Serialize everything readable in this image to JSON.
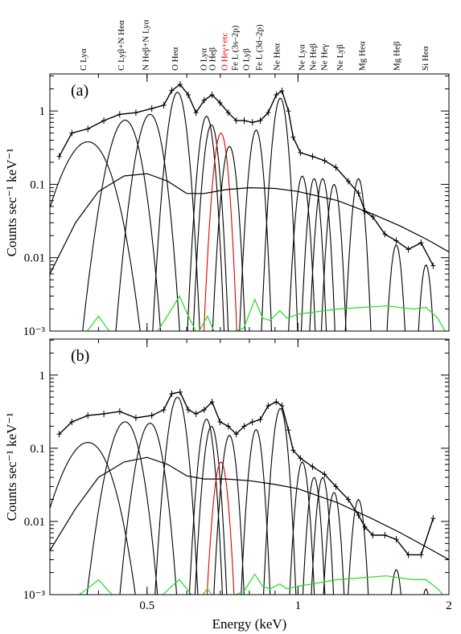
{
  "chart_data": [
    {
      "type": "spectrum",
      "panel_label": "(a)",
      "ylabel": "Counts sec⁻¹ keV⁻¹",
      "xlog": true,
      "ylog": true,
      "xlim": [
        0.32,
        2
      ],
      "ylim": [
        0.001,
        3.2
      ],
      "xticks": [
        0.5,
        1,
        2
      ],
      "yticks": [
        {
          "value": 0.001,
          "label": "10⁻³"
        },
        0.01,
        0.1,
        1
      ],
      "annotations": [
        {
          "text": "C Lyα",
          "x": 0.372,
          "color": "#000000"
        },
        {
          "text": "C Lyβ+N Heα",
          "x": 0.443,
          "color": "#000000"
        },
        {
          "text": "N Heβ+N Lyα",
          "x": 0.496,
          "color": "#000000"
        },
        {
          "text": "O Heα",
          "x": 0.567,
          "color": "#000000"
        },
        {
          "text": "O Lyα",
          "x": 0.647,
          "color": "#000000"
        },
        {
          "text": "O Heβ",
          "x": 0.674,
          "color": "#000000"
        },
        {
          "text": "O Heγ+etc",
          "x": 0.712,
          "color": "#e00000"
        },
        {
          "text": "Fe L (3s–2p)",
          "x": 0.747,
          "color": "#000000"
        },
        {
          "text": "O Lyβ",
          "x": 0.787,
          "color": "#000000"
        },
        {
          "text": "Fe L (3d–2p)",
          "x": 0.835,
          "color": "#000000"
        },
        {
          "text": "Ne Heα",
          "x": 0.905,
          "color": "#000000"
        },
        {
          "text": "Ne Lyα",
          "x": 1.015,
          "color": "#000000"
        },
        {
          "text": "Ne Heβ",
          "x": 1.069,
          "color": "#000000"
        },
        {
          "text": "Ne Heγ",
          "x": 1.125,
          "color": "#000000"
        },
        {
          "text": "Ne Lyβ",
          "x": 1.21,
          "color": "#000000"
        },
        {
          "text": "Mg Heα",
          "x": 1.34,
          "color": "#000000"
        },
        {
          "text": "Mg Heβ",
          "x": 1.57,
          "color": "#000000"
        },
        {
          "text": "Si Heα",
          "x": 1.79,
          "color": "#000000"
        }
      ],
      "data": {
        "color": "#000000",
        "x": [
          0.334,
          0.354,
          0.381,
          0.41,
          0.441,
          0.475,
          0.511,
          0.54,
          0.56,
          0.582,
          0.604,
          0.626,
          0.65,
          0.674,
          0.699,
          0.726,
          0.753,
          0.781,
          0.811,
          0.841,
          0.872,
          0.905,
          0.929,
          0.957,
          0.978,
          1.011,
          1.069,
          1.13,
          1.19,
          1.26,
          1.32,
          1.36,
          1.41,
          1.49,
          1.57,
          1.66,
          1.76,
          1.86
        ],
        "values": [
          0.24,
          0.5,
          0.57,
          0.74,
          0.9,
          0.95,
          1.08,
          1.2,
          1.9,
          2.3,
          1.66,
          0.95,
          1.4,
          1.66,
          1.29,
          0.95,
          0.74,
          0.74,
          0.7,
          0.74,
          0.95,
          1.66,
          1.88,
          1.0,
          0.44,
          0.27,
          0.24,
          0.21,
          0.17,
          0.11,
          0.076,
          0.043,
          0.036,
          0.021,
          0.017,
          0.013,
          0.016,
          0.0078
        ]
      },
      "components": [
        {
          "center": 0.381,
          "peak": 0.38,
          "sigma": 0.03,
          "color": "#000000"
        },
        {
          "center": 0.452,
          "peak": 0.75,
          "sigma": 0.022,
          "color": "#000000"
        },
        {
          "center": 0.507,
          "peak": 0.9,
          "sigma": 0.02,
          "color": "#000000"
        },
        {
          "center": 0.575,
          "peak": 1.8,
          "sigma": 0.016,
          "color": "#000000"
        },
        {
          "center": 0.657,
          "peak": 0.85,
          "sigma": 0.015,
          "color": "#000000"
        },
        {
          "center": 0.672,
          "peak": 0.65,
          "sigma": 0.015,
          "color": "#000000"
        },
        {
          "center": 0.702,
          "peak": 0.5,
          "sigma": 0.015,
          "color": "#e00000"
        },
        {
          "center": 0.73,
          "peak": 0.33,
          "sigma": 0.016,
          "color": "#000000"
        },
        {
          "center": 0.825,
          "peak": 0.55,
          "sigma": 0.017,
          "color": "#000000"
        },
        {
          "center": 0.922,
          "peak": 1.5,
          "sigma": 0.02,
          "color": "#000000"
        },
        {
          "center": 1.02,
          "peak": 0.13,
          "sigma": 0.02,
          "color": "#000000"
        },
        {
          "center": 1.077,
          "peak": 0.12,
          "sigma": 0.02,
          "color": "#000000"
        },
        {
          "center": 1.12,
          "peak": 0.12,
          "sigma": 0.021,
          "color": "#000000"
        },
        {
          "center": 1.18,
          "peak": 0.1,
          "sigma": 0.022,
          "color": "#000000"
        },
        {
          "center": 1.32,
          "peak": 0.12,
          "sigma": 0.025,
          "color": "#000000"
        },
        {
          "center": 1.57,
          "peak": 0.015,
          "sigma": 0.028,
          "color": "#000000"
        },
        {
          "center": 1.8,
          "peak": 0.008,
          "sigma": 0.03,
          "color": "#000000"
        }
      ],
      "curves": [
        {
          "color": "#000000",
          "x": [
            0.32,
            0.36,
            0.4,
            0.45,
            0.5,
            0.55,
            0.6,
            0.65,
            0.72,
            0.8,
            0.9,
            1.0,
            1.2,
            1.4,
            1.6,
            1.8,
            2.0
          ],
          "values": [
            0.006,
            0.03,
            0.08,
            0.13,
            0.14,
            0.11,
            0.075,
            0.075,
            0.085,
            0.09,
            0.088,
            0.08,
            0.06,
            0.04,
            0.027,
            0.018,
            0.012
          ]
        },
        {
          "color": "#22dd22",
          "x": [
            0.35,
            0.38,
            0.4,
            0.42,
            0.45,
            0.52,
            0.56,
            0.58,
            0.6,
            0.63,
            0.66,
            0.68,
            0.72,
            0.78,
            0.82,
            0.85,
            0.88,
            0.92,
            0.95,
            1.0,
            1.2,
            1.5,
            1.7,
            1.8,
            1.9,
            2.0
          ],
          "values": [
            0.0006,
            0.001,
            0.0016,
            0.001,
            0.0008,
            0.0009,
            0.002,
            0.003,
            0.0018,
            0.0009,
            0.0016,
            0.001,
            0.0009,
            0.0011,
            0.0027,
            0.0015,
            0.0014,
            0.0019,
            0.0015,
            0.0017,
            0.002,
            0.0022,
            0.002,
            0.0021,
            0.0015,
            0.0008
          ]
        }
      ]
    },
    {
      "type": "spectrum",
      "panel_label": "(b)",
      "ylabel": "Counts sec⁻¹ keV⁻¹",
      "xlabel": "Energy (keV)",
      "xlog": true,
      "ylog": true,
      "xlim": [
        0.32,
        2
      ],
      "ylim": [
        0.001,
        3.1
      ],
      "xticks": [
        0.5,
        1,
        2
      ],
      "yticks": [
        {
          "value": 0.001,
          "label": "10⁻³"
        },
        0.01,
        0.1,
        1
      ],
      "data": {
        "color": "#000000",
        "x": [
          0.334,
          0.354,
          0.381,
          0.41,
          0.441,
          0.475,
          0.511,
          0.54,
          0.56,
          0.582,
          0.604,
          0.626,
          0.65,
          0.674,
          0.699,
          0.726,
          0.753,
          0.781,
          0.811,
          0.841,
          0.872,
          0.905,
          0.929,
          0.957,
          0.978,
          1.011,
          1.069,
          1.13,
          1.19,
          1.26,
          1.32,
          1.36,
          1.41,
          1.49,
          1.57,
          1.66,
          1.76,
          1.86
        ],
        "values": [
          0.156,
          0.229,
          0.28,
          0.295,
          0.318,
          0.26,
          0.28,
          0.335,
          0.557,
          0.586,
          0.335,
          0.295,
          0.335,
          0.43,
          0.229,
          0.2,
          0.156,
          0.2,
          0.229,
          0.247,
          0.38,
          0.43,
          0.38,
          0.177,
          0.094,
          0.073,
          0.056,
          0.044,
          0.03,
          0.02,
          0.0122,
          0.0084,
          0.0065,
          0.0065,
          0.0057,
          0.0035,
          0.0035,
          0.011
        ]
      },
      "components": [
        {
          "center": 0.381,
          "peak": 0.12,
          "sigma": 0.03,
          "color": "#000000"
        },
        {
          "center": 0.452,
          "peak": 0.23,
          "sigma": 0.022,
          "color": "#000000"
        },
        {
          "center": 0.507,
          "peak": 0.22,
          "sigma": 0.02,
          "color": "#000000"
        },
        {
          "center": 0.575,
          "peak": 0.5,
          "sigma": 0.016,
          "color": "#000000"
        },
        {
          "center": 0.657,
          "peak": 0.25,
          "sigma": 0.015,
          "color": "#000000"
        },
        {
          "center": 0.672,
          "peak": 0.2,
          "sigma": 0.015,
          "color": "#000000"
        },
        {
          "center": 0.702,
          "peak": 0.065,
          "sigma": 0.015,
          "color": "#e00000"
        },
        {
          "center": 0.73,
          "peak": 0.15,
          "sigma": 0.016,
          "color": "#000000"
        },
        {
          "center": 0.825,
          "peak": 0.18,
          "sigma": 0.017,
          "color": "#000000"
        },
        {
          "center": 0.922,
          "peak": 0.35,
          "sigma": 0.02,
          "color": "#000000"
        },
        {
          "center": 1.02,
          "peak": 0.065,
          "sigma": 0.02,
          "color": "#000000"
        },
        {
          "center": 1.077,
          "peak": 0.04,
          "sigma": 0.02,
          "color": "#000000"
        },
        {
          "center": 1.12,
          "peak": 0.04,
          "sigma": 0.021,
          "color": "#000000"
        },
        {
          "center": 1.18,
          "peak": 0.025,
          "sigma": 0.022,
          "color": "#000000"
        },
        {
          "center": 1.32,
          "peak": 0.02,
          "sigma": 0.025,
          "color": "#000000"
        },
        {
          "center": 1.57,
          "peak": 0.0022,
          "sigma": 0.028,
          "color": "#000000"
        },
        {
          "center": 1.8,
          "peak": 0.0012,
          "sigma": 0.03,
          "color": "#000000"
        }
      ],
      "curves": [
        {
          "color": "#000000",
          "x": [
            0.32,
            0.36,
            0.4,
            0.45,
            0.5,
            0.55,
            0.6,
            0.65,
            0.72,
            0.8,
            0.9,
            1.0,
            1.2,
            1.4,
            1.6,
            1.8,
            2.0
          ],
          "values": [
            0.004,
            0.015,
            0.04,
            0.065,
            0.075,
            0.06,
            0.042,
            0.038,
            0.038,
            0.036,
            0.032,
            0.028,
            0.018,
            0.011,
            0.007,
            0.0045,
            0.003
          ]
        },
        {
          "color": "#22dd22",
          "x": [
            0.35,
            0.38,
            0.4,
            0.42,
            0.45,
            0.52,
            0.56,
            0.58,
            0.6,
            0.63,
            0.66,
            0.68,
            0.72,
            0.78,
            0.82,
            0.85,
            0.88,
            0.92,
            0.95,
            1.0,
            1.2,
            1.5,
            1.7,
            1.8,
            1.9,
            2.0
          ],
          "values": [
            0.0008,
            0.0012,
            0.0016,
            0.0011,
            0.0007,
            0.0008,
            0.0013,
            0.0016,
            0.0012,
            0.0008,
            0.0012,
            0.0009,
            0.0009,
            0.0011,
            0.0019,
            0.0013,
            0.0012,
            0.0014,
            0.0012,
            0.0013,
            0.0016,
            0.0018,
            0.0016,
            0.0016,
            0.0012,
            0.0008
          ]
        }
      ]
    }
  ]
}
